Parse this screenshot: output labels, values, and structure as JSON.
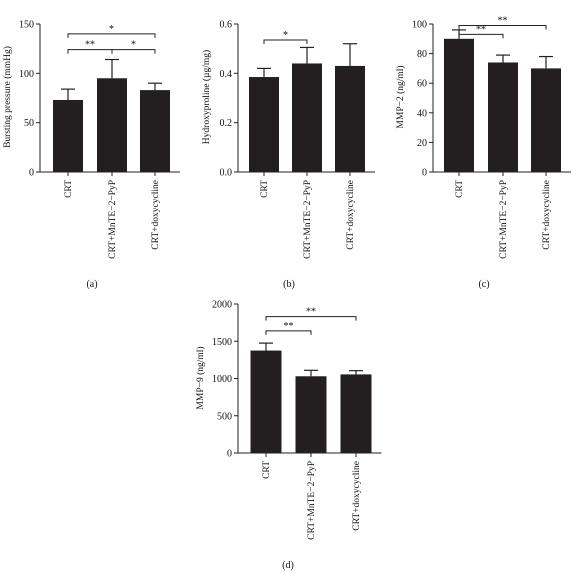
{
  "chart_data": [
    {
      "type": "bar",
      "panel": "(a)",
      "ylabel": "Bursting pressure (mmHg)",
      "categories": [
        "CRT",
        "CRT+MnTE−2−PyP",
        "CRT+doxycycline"
      ],
      "values": [
        73,
        95,
        83
      ],
      "errors": [
        11,
        19,
        7
      ],
      "ylim": [
        0,
        150
      ],
      "yticks": [
        "0",
        "50",
        "100",
        "150"
      ],
      "yticks_values": [
        0,
        50,
        100,
        150
      ],
      "significance": [
        {
          "from": 0,
          "to": 2,
          "label": "*",
          "y": 140
        },
        {
          "from": 0,
          "to": 1,
          "label": "**",
          "y": 124
        },
        {
          "from": 1,
          "to": 2,
          "label": "*",
          "y": 124
        }
      ],
      "bar_color": "#231f20"
    },
    {
      "type": "bar",
      "panel": "(b)",
      "ylabel": "Hydroxyproline (µg/mg)",
      "categories": [
        "CRT",
        "CRT+MnTE−2−PyP",
        "CRT+doxycycline"
      ],
      "values": [
        0.385,
        0.44,
        0.43
      ],
      "errors": [
        0.035,
        0.065,
        0.09
      ],
      "ylim": [
        0,
        0.6
      ],
      "yticks": [
        "0.0",
        "0.2",
        "0.4",
        "0.6"
      ],
      "yticks_values": [
        0,
        0.2,
        0.4,
        0.6
      ],
      "significance": [
        {
          "from": 0,
          "to": 1,
          "label": "*",
          "y": 0.535
        }
      ],
      "bar_color": "#231f20"
    },
    {
      "type": "bar",
      "panel": "(c)",
      "ylabel": "MMP−2 (ng/ml)",
      "categories": [
        "CRT",
        "CRT+MnTE−2−PyP",
        "CRT+doxycycline"
      ],
      "values": [
        90,
        74,
        70
      ],
      "errors": [
        6,
        5,
        8
      ],
      "ylim": [
        0,
        100
      ],
      "yticks": [
        "0",
        "20",
        "40",
        "60",
        "80",
        "100"
      ],
      "yticks_values": [
        0,
        20,
        40,
        60,
        80,
        100
      ],
      "significance": [
        {
          "from": 0,
          "to": 2,
          "label": "**",
          "y": 99
        },
        {
          "from": 0,
          "to": 1,
          "label": "**",
          "y": 93
        }
      ],
      "bar_color": "#231f20"
    },
    {
      "type": "bar",
      "panel": "(d)",
      "ylabel": "MMP−9 (ng/ml)",
      "categories": [
        "CRT",
        "CRT+MnTE−2−PyP",
        "CRT+doxycycline"
      ],
      "values": [
        1375,
        1030,
        1055
      ],
      "errors": [
        100,
        80,
        50
      ],
      "ylim": [
        0,
        2000
      ],
      "yticks": [
        "0",
        "500",
        "1000",
        "1500",
        "2000"
      ],
      "yticks_values": [
        0,
        500,
        1000,
        1500,
        2000
      ],
      "significance": [
        {
          "from": 0,
          "to": 2,
          "label": "**",
          "y": 1830
        },
        {
          "from": 0,
          "to": 1,
          "label": "**",
          "y": 1640
        }
      ],
      "bar_color": "#231f20"
    }
  ]
}
